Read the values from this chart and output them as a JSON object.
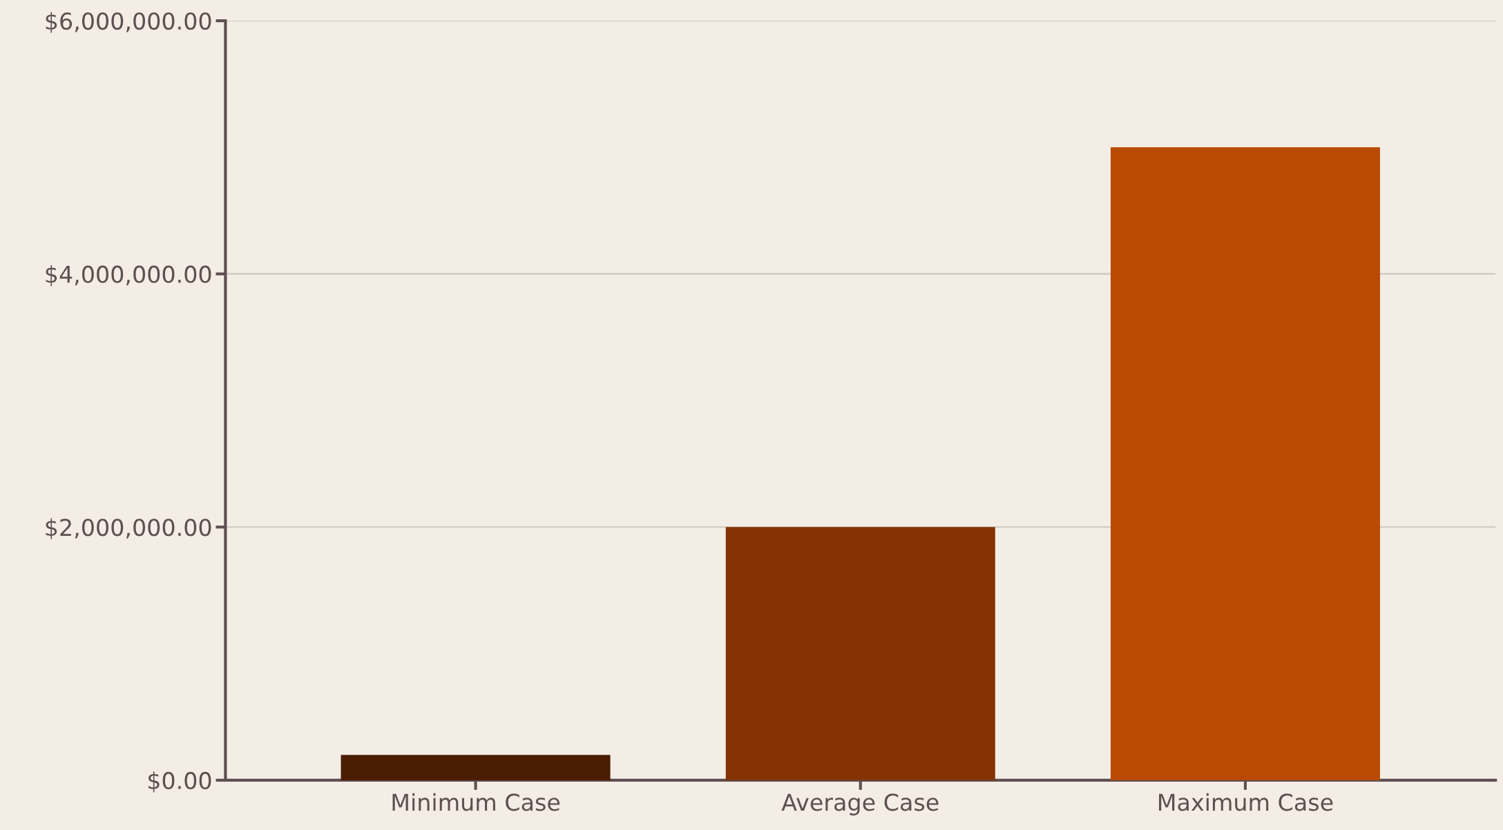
{
  "chart_data": {
    "type": "bar",
    "categories": [
      "Minimum Case",
      "Average Case",
      "Maximum Case"
    ],
    "values": [
      200000,
      2000000,
      5000000
    ],
    "colors": [
      "#4a1c02",
      "#843202",
      "#b94a01"
    ],
    "ylim": [
      0,
      6000000
    ],
    "yticks": [
      {
        "value": 0,
        "label": "$0.00"
      },
      {
        "value": 2000000,
        "label": "$2,000,000.00"
      },
      {
        "value": 4000000,
        "label": "$4,000,000.00"
      },
      {
        "value": 6000000,
        "label": "$6,000,000.00"
      }
    ],
    "grid": "y",
    "legend": false
  }
}
